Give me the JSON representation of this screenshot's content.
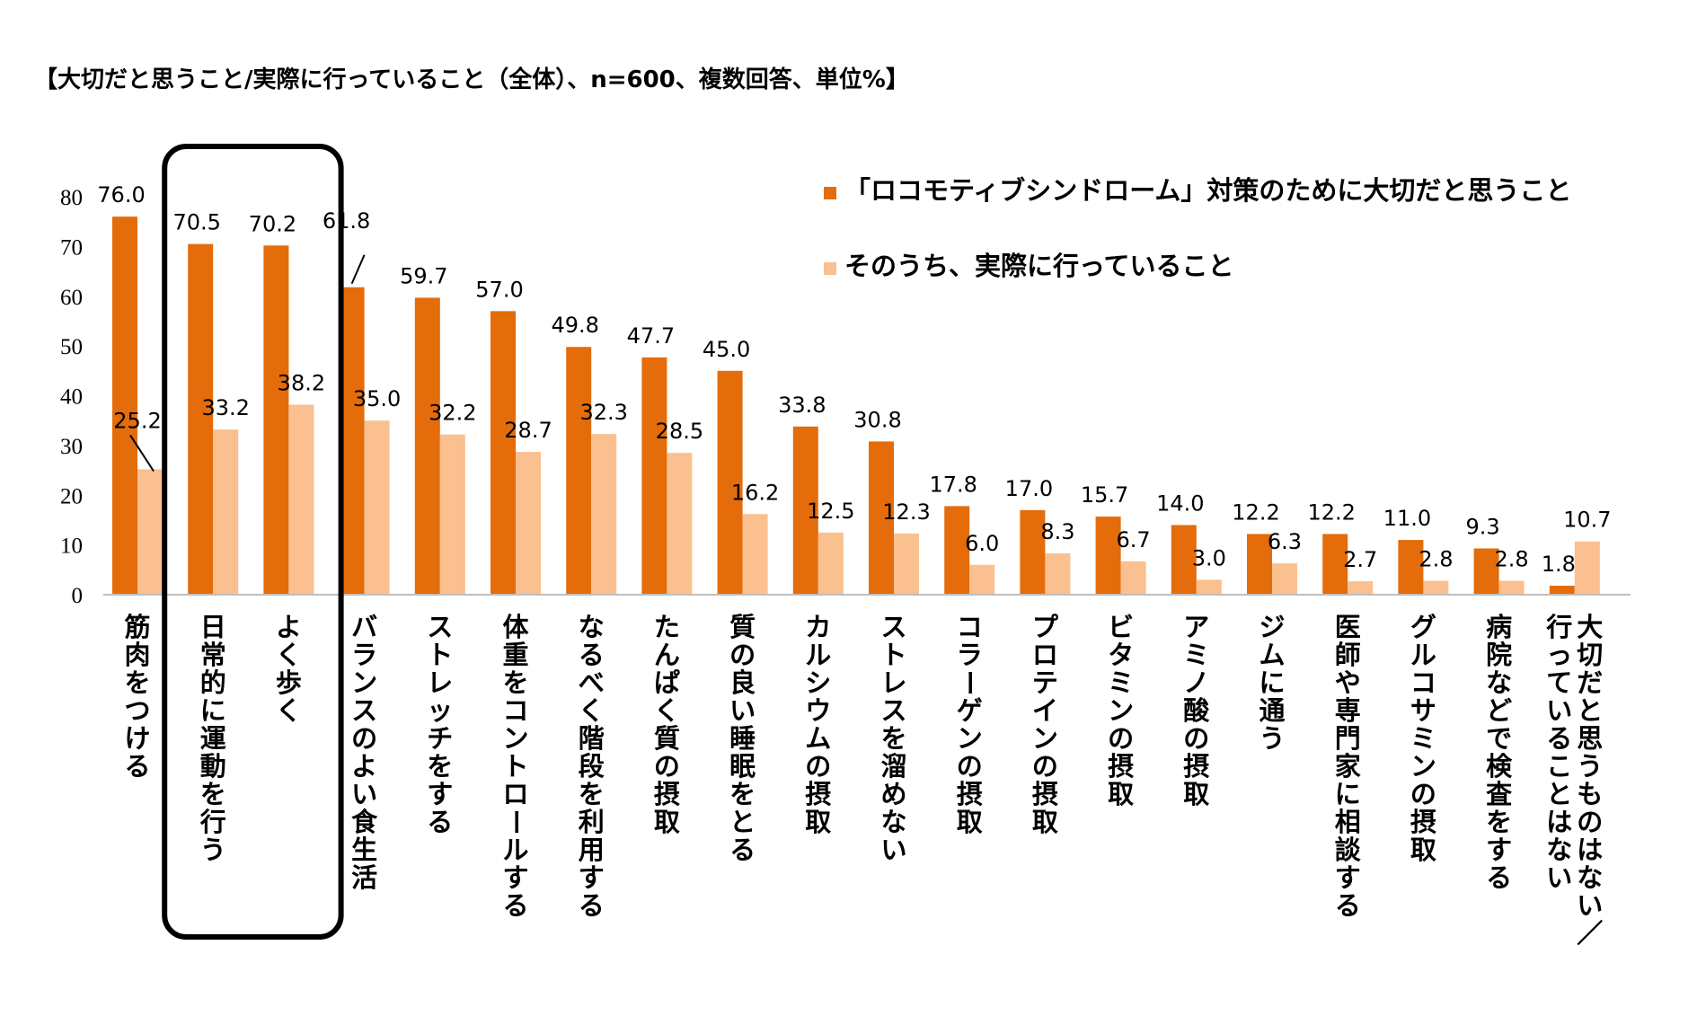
{
  "chart_data": {
    "type": "bar",
    "title": "【大切だと思うこと/実際に行っていること（全体）、n=600、複数回答、単位%】",
    "categories": [
      [
        "筋肉をつける"
      ],
      [
        "日常的に運動を行う"
      ],
      [
        "よく歩く"
      ],
      [
        "バランスのよい食生活"
      ],
      [
        "ストレッチをする"
      ],
      [
        "体重をコントロールする"
      ],
      [
        "なるべく階段を利用する"
      ],
      [
        "たんぱく質の摂取"
      ],
      [
        "質の良い睡眠をとる"
      ],
      [
        "カルシウムの摂取"
      ],
      [
        "ストレスを溜めない"
      ],
      [
        "コラーゲンの摂取"
      ],
      [
        "プロテインの摂取"
      ],
      [
        "ビタミンの摂取"
      ],
      [
        "アミノ酸の摂取"
      ],
      [
        "ジムに通う"
      ],
      [
        "医師や専門家に相談する"
      ],
      [
        "グルコサミンの摂取"
      ],
      [
        "病院などで検査をする"
      ],
      [
        "大切だと思うものはない／",
        "行っていることはない"
      ]
    ],
    "series": [
      {
        "name": "「ロコモティブシンドローム」対策のために大切だと思うこと",
        "color": "#E46C0A",
        "values": [
          76.0,
          70.5,
          70.2,
          61.8,
          59.7,
          57.0,
          49.8,
          47.7,
          45.0,
          33.8,
          30.8,
          17.8,
          17.0,
          15.7,
          14.0,
          12.2,
          12.2,
          11.0,
          9.3,
          1.8
        ],
        "labels": [
          "76.0",
          "70.5",
          "70.2",
          "61.8",
          "59.7",
          "57.0",
          "49.8",
          "47.7",
          "45.0",
          "33.8",
          "30.8",
          "17.8",
          "17.0",
          "15.7",
          "14.0",
          "12.2",
          "12.2",
          "11.0",
          "9.3",
          "1.8"
        ]
      },
      {
        "name": "そのうち、実際に行っていること",
        "color": "#FAC090",
        "values": [
          25.2,
          33.2,
          38.2,
          35.0,
          32.2,
          28.7,
          32.3,
          28.5,
          16.2,
          12.5,
          12.3,
          6.0,
          8.3,
          6.7,
          3.0,
          6.3,
          2.7,
          2.8,
          2.8,
          10.7
        ],
        "labels": [
          "25.2",
          "33.2",
          "38.2",
          "35.0",
          "32.2",
          "28.7",
          "32.3",
          "28.5",
          "16.2",
          "12.5",
          "12.3",
          "6.0",
          "8.3",
          "6.7",
          "3.0",
          "6.3",
          "2.7",
          "2.8",
          "2.8",
          "10.7"
        ]
      }
    ],
    "ylim": [
      0,
      80
    ],
    "yticks": [
      "0",
      "10",
      "20",
      "30",
      "40",
      "50",
      "60",
      "70",
      "80"
    ],
    "xlabel": "",
    "ylabel": "",
    "grid": false,
    "legend": "top-right",
    "highlight": {
      "categories": [
        1,
        2
      ],
      "style": "rounded-box"
    }
  }
}
